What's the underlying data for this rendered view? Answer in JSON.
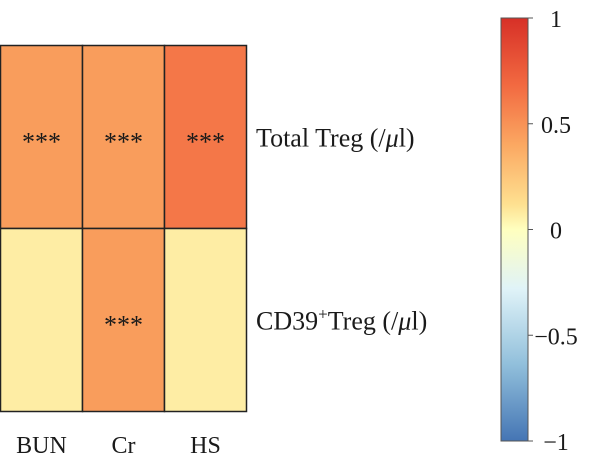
{
  "chart_data": {
    "type": "heatmap",
    "x_categories": [
      "BUN",
      "Cr",
      "HS"
    ],
    "y_categories": [
      {
        "main": "Total Treg (/",
        "italic": "μ",
        "tail": "l)",
        "sup": ""
      },
      {
        "main": "CD39",
        "sup": "+",
        "main2": "Treg (/",
        "italic": "μ",
        "tail": "l)"
      }
    ],
    "values": [
      [
        0.45,
        0.45,
        0.62
      ],
      [
        0.07,
        0.45,
        0.07
      ]
    ],
    "annotations": [
      [
        "***",
        "***",
        "***"
      ],
      [
        "",
        "***",
        ""
      ]
    ],
    "colorbar": {
      "range": [
        -1,
        1
      ],
      "tick_labels": [
        "1",
        "0.5",
        "0",
        "−0.5",
        "−1"
      ],
      "tick_values": [
        1,
        0.5,
        0,
        -0.5,
        -1
      ],
      "colors": [
        "#d73027",
        "#fc8d59",
        "#fee090",
        "#ffffbf",
        "#e0f3f8",
        "#91bfdb",
        "#4575b4"
      ]
    }
  }
}
